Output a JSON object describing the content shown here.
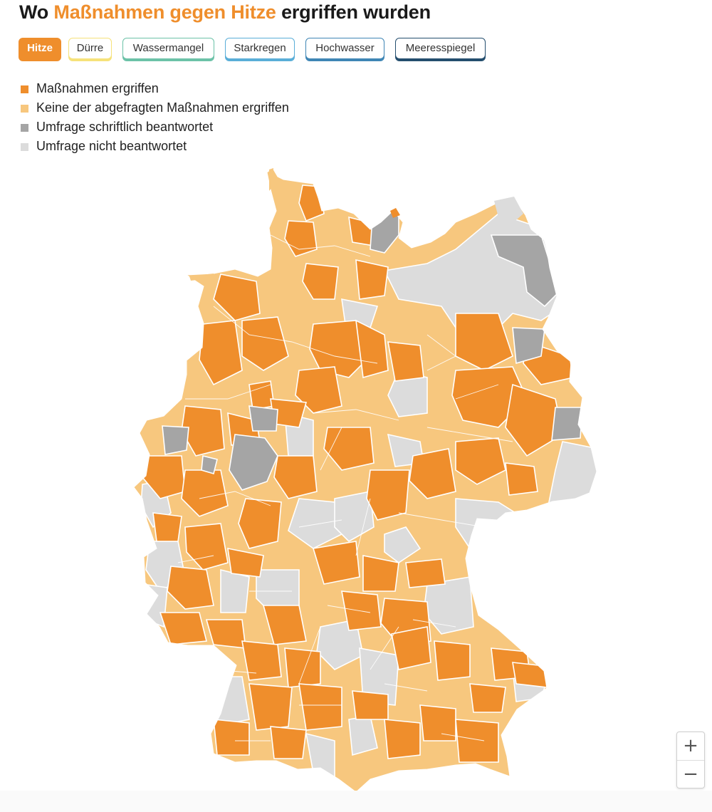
{
  "title": {
    "prefix": "Wo",
    "highlight": "Maßnahmen gegen Hitze",
    "suffix": "ergriffen wurden"
  },
  "tabs": [
    {
      "label": "Hitze",
      "active": true,
      "color": "#ef8e2c"
    },
    {
      "label": "Dürre",
      "active": false,
      "color": "#f6e27a"
    },
    {
      "label": "Wassermangel",
      "active": false,
      "color": "#6cc2a8"
    },
    {
      "label": "Starkregen",
      "active": false,
      "color": "#5aaed8"
    },
    {
      "label": "Hochwasser",
      "active": false,
      "color": "#3f86b5"
    },
    {
      "label": "Meeresspiegel",
      "active": false,
      "color": "#244e6e"
    }
  ],
  "legend": [
    {
      "label": "Maßnahmen ergriffen",
      "color": "#ef8e2c"
    },
    {
      "label": "Keine der abgefragten Maßnahmen ergriffen",
      "color": "#f7c77e"
    },
    {
      "label": "Umfrage schriftlich beantwortet",
      "color": "#a5a5a5"
    },
    {
      "label": "Umfrage nicht beantwortet",
      "color": "#dcdcdc"
    }
  ],
  "zoom": {
    "in": "+",
    "out": "−"
  }
}
